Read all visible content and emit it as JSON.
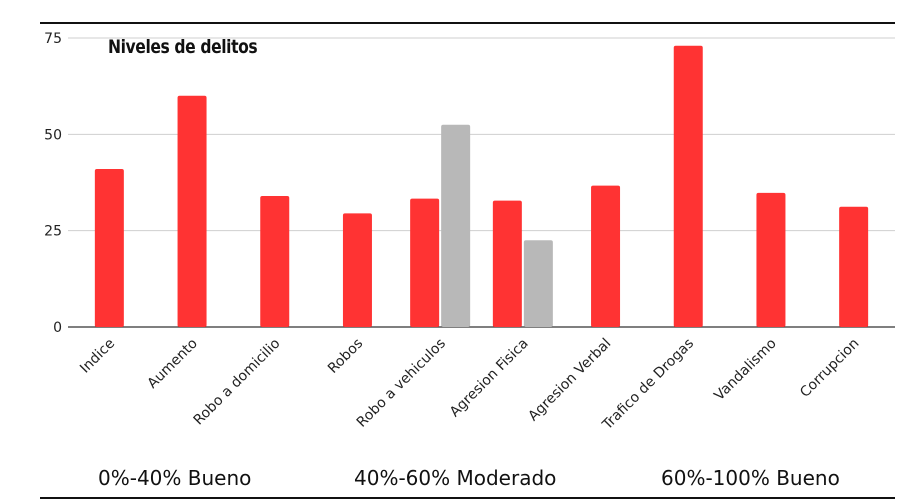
{
  "chart_data": {
    "type": "bar",
    "title": "Niveles de delitos",
    "categories": [
      "Indice",
      "Aumento",
      "Robo a domicilio",
      "Robos",
      "Robo a vehiculos",
      "Agresion Fisica",
      "Agresion Verbal",
      "Trafico de Drogas",
      "Vandalismo",
      "Corrupcion"
    ],
    "series": [
      {
        "values": [
          41,
          60,
          34,
          29.5,
          33.3,
          32.8,
          36.7,
          73,
          34.8,
          31.2
        ],
        "color": "#ff3333"
      },
      {
        "values": [
          null,
          null,
          null,
          null,
          52.5,
          22.5,
          null,
          null,
          null,
          null
        ],
        "color": "#b8b8b8"
      }
    ],
    "yticks": [
      0,
      25,
      50,
      75
    ],
    "ylim": [
      0,
      75
    ],
    "grid": true,
    "xlabel": "",
    "ylabel": ""
  },
  "legend_labels": [
    "0%-40% Bueno",
    "40%-60% Moderado",
    "60%-100% Bueno"
  ]
}
